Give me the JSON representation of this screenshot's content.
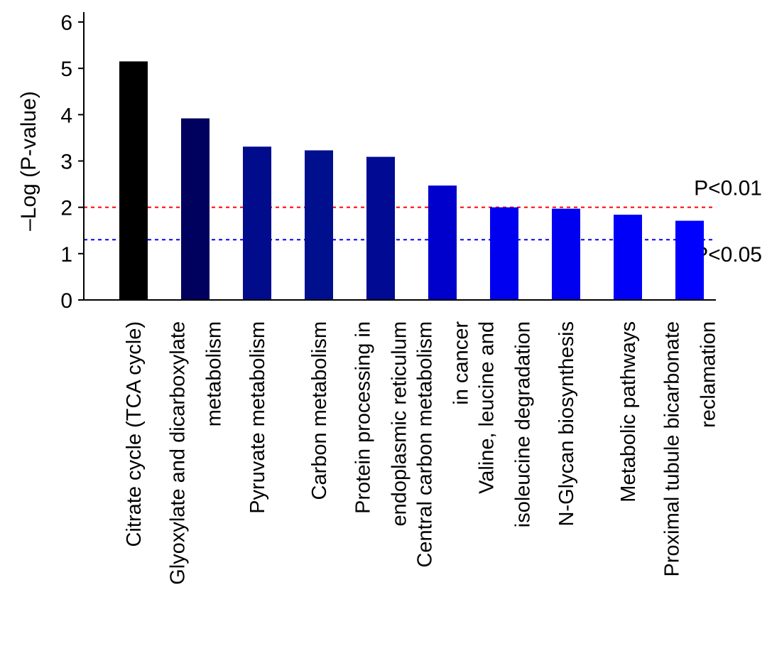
{
  "chart_data": {
    "type": "bar",
    "ylabel": "–Log (P-value)",
    "ylim": [
      0,
      6
    ],
    "yticks": [
      0,
      1,
      2,
      3,
      4,
      5,
      6
    ],
    "grid": false,
    "categories": [
      [
        "Citrate cycle (TCA cycle)"
      ],
      [
        "Glyoxylate and dicarboxylate",
        "metabolism"
      ],
      [
        "Pyruvate metabolism"
      ],
      [
        "Carbon metabolism"
      ],
      [
        "Protein processing in",
        "endoplasmic reticulum"
      ],
      [
        "Central carbon metabolism",
        "in cancer"
      ],
      [
        "Valine, leucine and",
        "isoleucine degradation"
      ],
      [
        "N-Glycan biosynthesis"
      ],
      [
        "Metabolic pathways"
      ],
      [
        "Proximal tubule bicarbonate",
        "reclamation"
      ]
    ],
    "values": [
      5.15,
      3.92,
      3.31,
      3.23,
      3.09,
      2.47,
      2.0,
      1.97,
      1.84,
      1.71
    ],
    "bar_colors": [
      "#000000",
      "#00005e",
      "#000c8c",
      "#000f8e",
      "#000a92",
      "#0000cc",
      "#0000f0",
      "#0000f0",
      "#0000f8",
      "#0000ff"
    ],
    "reference_lines": [
      {
        "label": "P<0.01",
        "value": 2.0,
        "color": "#ff0000"
      },
      {
        "label": "P<0.05",
        "value": 1.301,
        "color": "#0000ff"
      }
    ]
  }
}
